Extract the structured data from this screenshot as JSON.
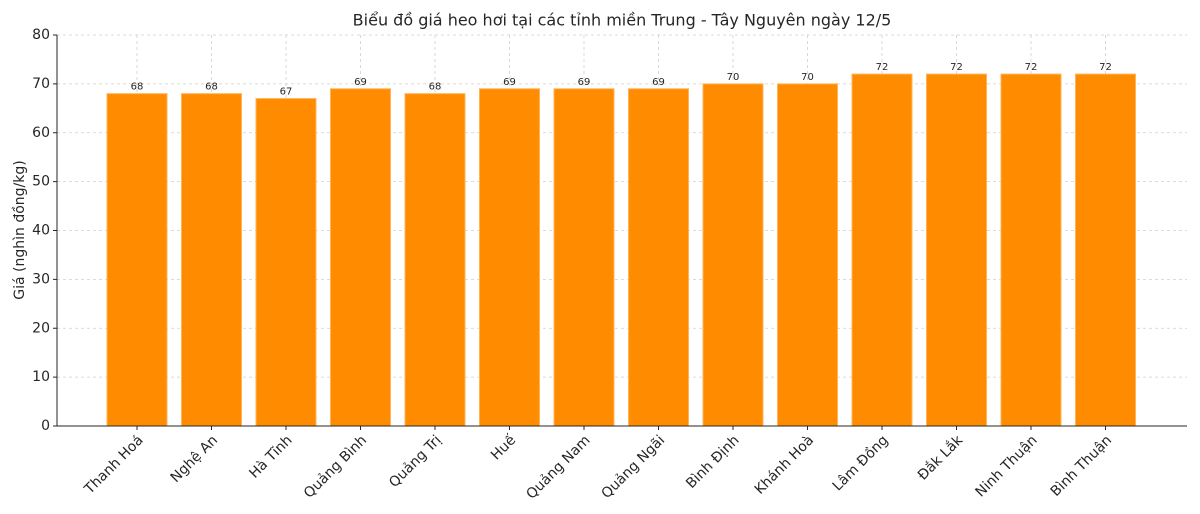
{
  "chart_data": {
    "type": "bar",
    "title": "Biểu đồ giá heo hơi tại các tỉnh miền Trung - Tây Nguyên ngày 12/5",
    "y_label": "Giá (nghìn đồng/kg)",
    "categories": [
      "Thanh Hoá",
      "Nghệ An",
      "Hà Tĩnh",
      "Quảng Bình",
      "Quảng Trị",
      "Huế",
      "Quảng Nam",
      "Quảng Ngãi",
      "Bình Định",
      "Khánh Hoà",
      "Lâm Đồng",
      "Đắk Lắk",
      "Ninh Thuận",
      "Bình Thuận"
    ],
    "values": [
      68,
      68,
      67,
      69,
      68,
      69,
      69,
      69,
      70,
      70,
      72,
      72,
      72,
      72
    ],
    "color": "#ff8c00",
    "ylim": [
      0,
      80
    ],
    "yticks": [
      0,
      10,
      20,
      30,
      40,
      50,
      60,
      70,
      80
    ],
    "grid": true
  }
}
